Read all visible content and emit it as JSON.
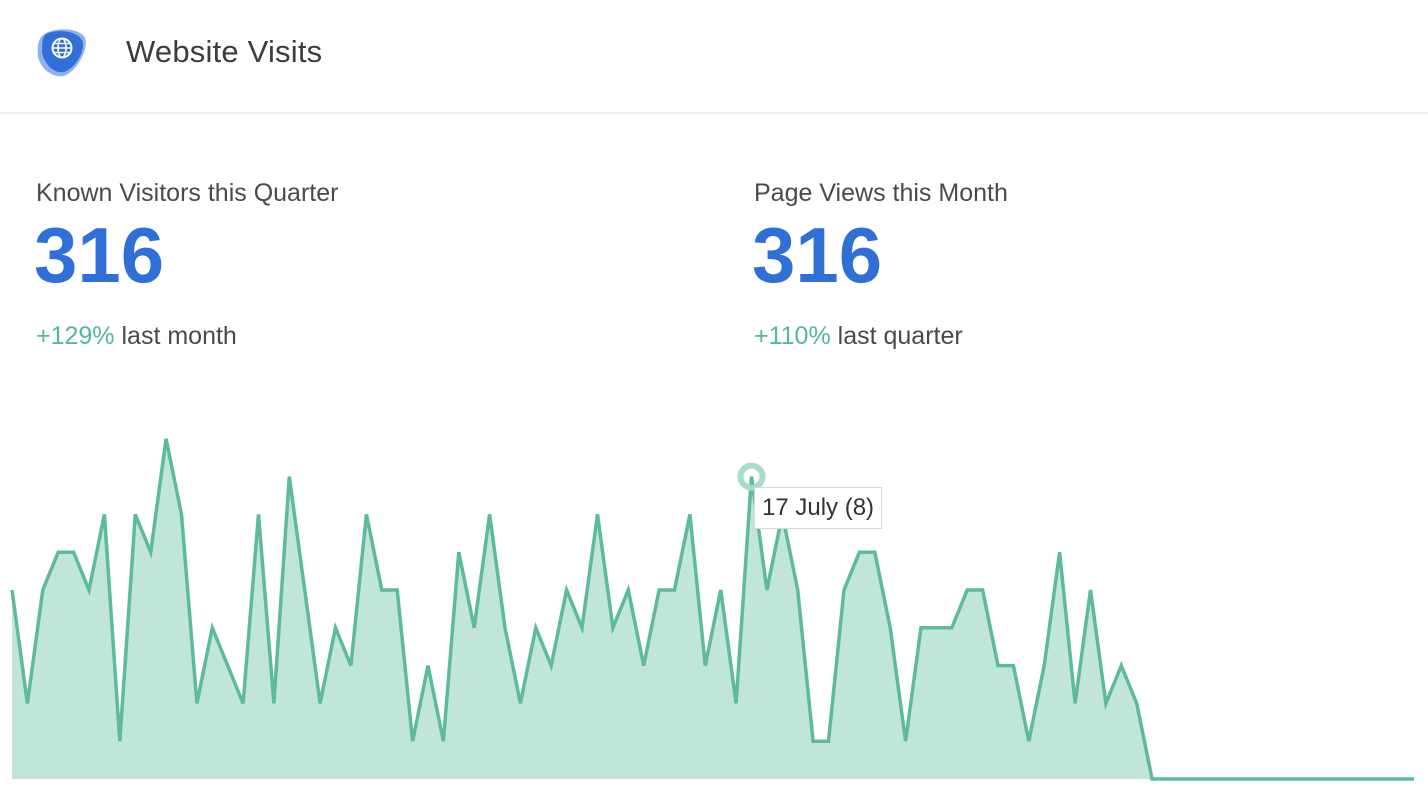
{
  "header": {
    "title": "Website Visits",
    "icon": "globe-icon",
    "icon_color": "#2f6fd6"
  },
  "stats": [
    {
      "label": "Known Visitors this Quarter",
      "value": "316",
      "change_percent": "+129%",
      "change_period": "last month"
    },
    {
      "label": "Page Views this Month",
      "value": "316",
      "change_percent": "+110%",
      "change_period": "last quarter"
    }
  ],
  "colors": {
    "accent": "#2f6fd6",
    "positive": "#52bb8f",
    "line": "#5dbb97",
    "area": "#c1e6d9"
  },
  "chart_data": {
    "type": "area",
    "title": "",
    "xlabel": "",
    "ylabel": "",
    "grid": false,
    "ylim": [
      0,
      9
    ],
    "series": [
      {
        "values": [
          5,
          2,
          5,
          6,
          6,
          5,
          7,
          1,
          7,
          6,
          9,
          7,
          2,
          4,
          3,
          2,
          7,
          2,
          8,
          5,
          2,
          4,
          3,
          7,
          5,
          5,
          1,
          3,
          1,
          6,
          4,
          7,
          4,
          2,
          4,
          3,
          5,
          4,
          7,
          4,
          5,
          3,
          5,
          5,
          7,
          3,
          5,
          2,
          8,
          5,
          7,
          5,
          1,
          1,
          5,
          6,
          6,
          4,
          1,
          4,
          4,
          4,
          5,
          5,
          3,
          3,
          1,
          3,
          6,
          2,
          5,
          2,
          3,
          2,
          0,
          0,
          0,
          0,
          0,
          0,
          0,
          0,
          0,
          0,
          0,
          0,
          0,
          0,
          0,
          0,
          0,
          0
        ]
      }
    ],
    "highlight": {
      "index": 48,
      "value": 8,
      "label": "17 July (8)"
    }
  }
}
